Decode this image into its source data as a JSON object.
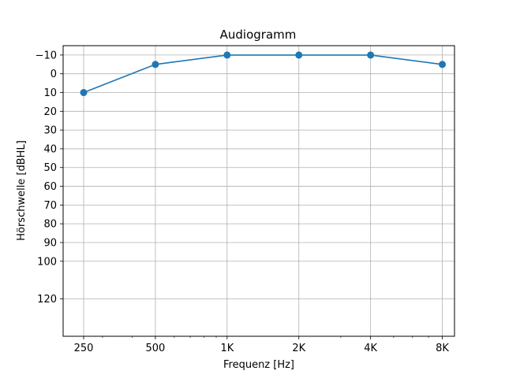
{
  "chart_data": {
    "type": "line",
    "title": "Audiogramm",
    "xlabel": "Frequenz [Hz]",
    "ylabel": "Hörschwelle [dBHL]",
    "x_scale": "log",
    "y_inverted": true,
    "x_ticks": [
      {
        "value": 250,
        "label": "250"
      },
      {
        "value": 500,
        "label": "500"
      },
      {
        "value": 1000,
        "label": "1K"
      },
      {
        "value": 2000,
        "label": "2K"
      },
      {
        "value": 4000,
        "label": "4K"
      },
      {
        "value": 8000,
        "label": "8K"
      }
    ],
    "y_ticks": [
      {
        "value": -10,
        "label": "−10"
      },
      {
        "value": 0,
        "label": "0"
      },
      {
        "value": 10,
        "label": "10"
      },
      {
        "value": 20,
        "label": "20"
      },
      {
        "value": 30,
        "label": "30"
      },
      {
        "value": 40,
        "label": "40"
      },
      {
        "value": 50,
        "label": "50"
      },
      {
        "value": 60,
        "label": "60"
      },
      {
        "value": 70,
        "label": "70"
      },
      {
        "value": 80,
        "label": "80"
      },
      {
        "value": 90,
        "label": "90"
      },
      {
        "value": 100,
        "label": "100"
      },
      {
        "value": 120,
        "label": "120"
      }
    ],
    "xlim": [
      205,
      9000
    ],
    "ylim": [
      -15,
      140
    ],
    "grid": true,
    "color": "#1f77b4",
    "series": [
      {
        "x": [
          250,
          500,
          1000,
          2000,
          4000,
          8000
        ],
        "y": [
          10,
          -5,
          -10,
          -10,
          -10,
          -5
        ]
      }
    ]
  }
}
